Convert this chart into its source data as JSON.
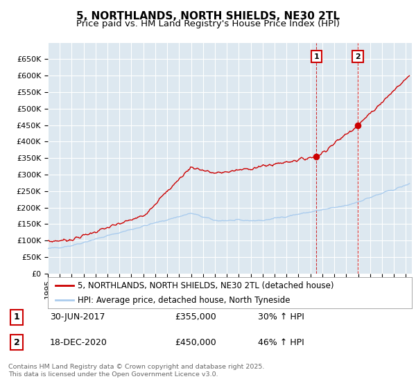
{
  "title": "5, NORTHLANDS, NORTH SHIELDS, NE30 2TL",
  "subtitle": "Price paid vs. HM Land Registry's House Price Index (HPI)",
  "ylim": [
    0,
    700000
  ],
  "yticks": [
    0,
    50000,
    100000,
    150000,
    200000,
    250000,
    300000,
    350000,
    400000,
    450000,
    500000,
    550000,
    600000,
    650000
  ],
  "xlim_start": 1995.0,
  "xlim_end": 2025.5,
  "background_color": "#ffffff",
  "plot_bg_color": "#dde8f0",
  "grid_color": "#ffffff",
  "sale_label": "5, NORTHLANDS, NORTH SHIELDS, NE30 2TL (detached house)",
  "hpi_label": "HPI: Average price, detached house, North Tyneside",
  "sale_color": "#cc0000",
  "hpi_color": "#aaccee",
  "marker1_x": 2017.5,
  "marker1_y": 355000,
  "marker2_x": 2020.97,
  "marker2_y": 450000,
  "annotation1": "1",
  "annotation2": "2",
  "table_rows": [
    {
      "num": "1",
      "date": "30-JUN-2017",
      "price": "£355,000",
      "hpi": "30% ↑ HPI"
    },
    {
      "num": "2",
      "date": "18-DEC-2020",
      "price": "£450,000",
      "hpi": "46% ↑ HPI"
    }
  ],
  "footer": "Contains HM Land Registry data © Crown copyright and database right 2025.\nThis data is licensed under the Open Government Licence v3.0.",
  "title_fontsize": 11,
  "subtitle_fontsize": 9.5,
  "tick_fontsize": 8,
  "legend_fontsize": 8.5
}
